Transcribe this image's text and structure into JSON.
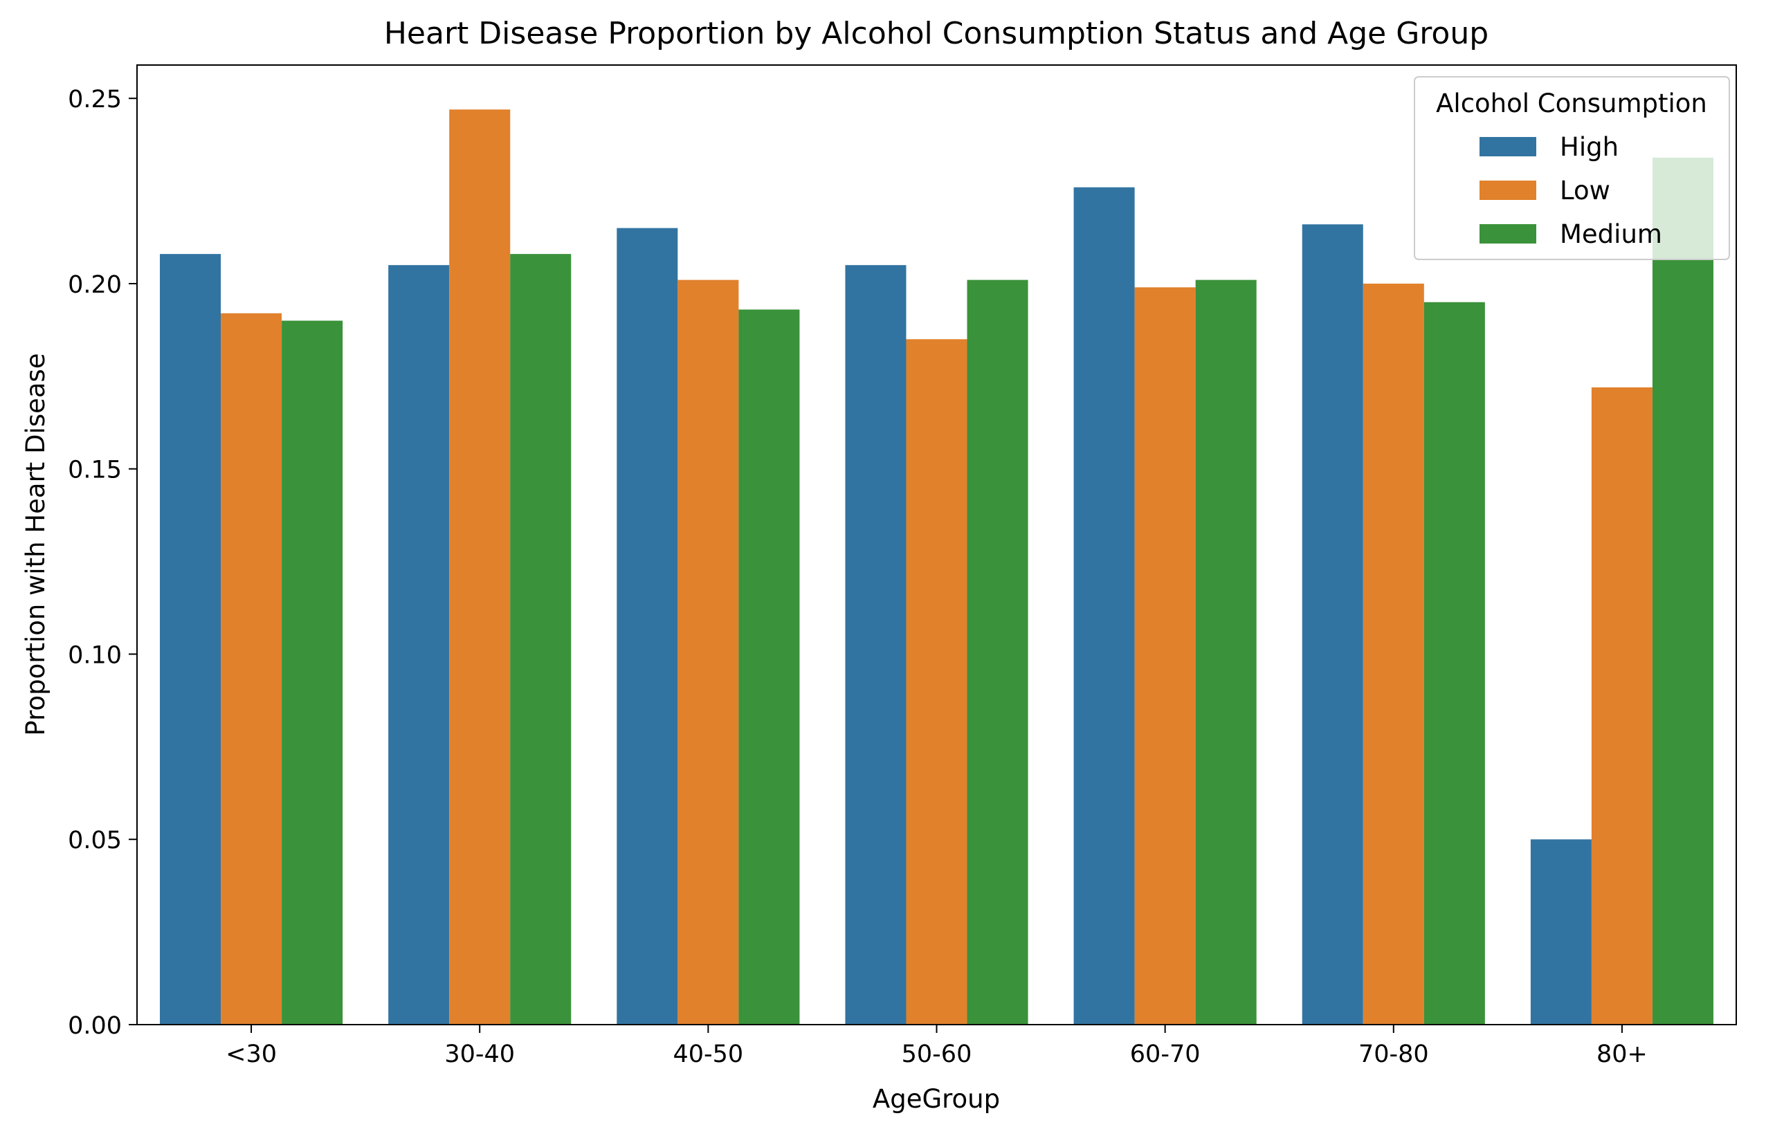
{
  "chart_data": {
    "type": "bar",
    "title": "Heart Disease Proportion by Alcohol Consumption Status and Age Group",
    "xlabel": "AgeGroup",
    "ylabel": "Proportion with Heart Disease",
    "categories": [
      "<30",
      "30-40",
      "40-50",
      "50-60",
      "60-70",
      "70-80",
      "80+"
    ],
    "ylim": [
      0,
      0.259
    ],
    "yticks": [
      0.0,
      0.05,
      0.1,
      0.15,
      0.2,
      0.25
    ],
    "ytick_labels": [
      "0.00",
      "0.05",
      "0.10",
      "0.15",
      "0.20",
      "0.25"
    ],
    "grid": false,
    "legend": {
      "title": "Alcohol Consumption",
      "placement": "top-right"
    },
    "series": [
      {
        "name": "High",
        "color": "#3274a1",
        "values": [
          0.208,
          0.205,
          0.215,
          0.205,
          0.226,
          0.216,
          0.05
        ]
      },
      {
        "name": "Low",
        "color": "#e1812c",
        "values": [
          0.192,
          0.247,
          0.201,
          0.185,
          0.199,
          0.2,
          0.172
        ]
      },
      {
        "name": "Medium",
        "color": "#3a923a",
        "values": [
          0.19,
          0.208,
          0.193,
          0.201,
          0.201,
          0.195,
          0.234
        ]
      }
    ]
  }
}
